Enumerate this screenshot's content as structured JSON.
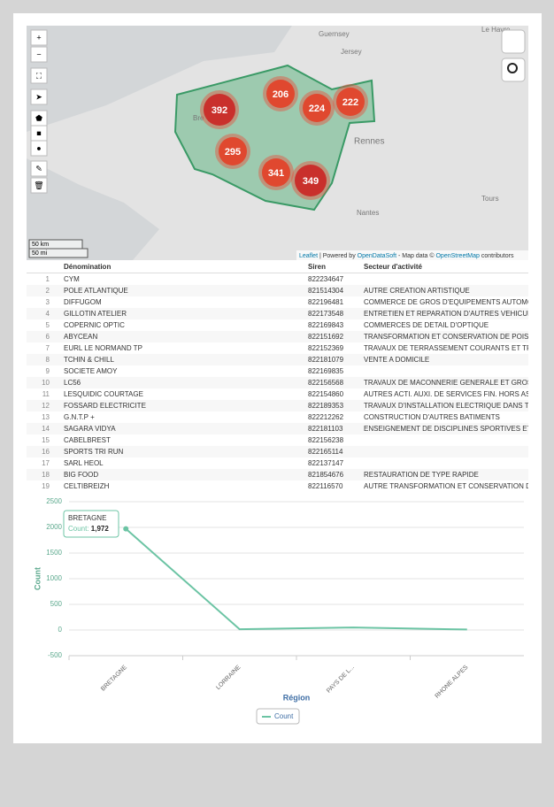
{
  "map": {
    "places": [
      "Guernsey",
      "Jersey",
      "Le Havre",
      "Rennes",
      "Nantes",
      "Tours",
      "Bre"
    ],
    "clusters": [
      "392",
      "206",
      "224",
      "222",
      "295",
      "341",
      "349"
    ],
    "scale": [
      "50 km",
      "50 mi"
    ],
    "attribution": [
      "Leaflet",
      "| Powered by",
      "OpenDataSoft",
      "- Map data ©",
      "OpenStreetMap",
      "contributors"
    ]
  },
  "table": {
    "headers": [
      "Dénomination",
      "Siren",
      "Secteur d'activité"
    ],
    "rows": [
      {
        "n": "1",
        "name": "CYM",
        "siren": "822234647"
      },
      {
        "n": "2",
        "name": "POLE ATLANTIQUE",
        "siren": "821514304",
        "sector": "AUTRE CREATION ARTISTIQUE"
      },
      {
        "n": "3",
        "name": "DIFFUGOM",
        "siren": "822196481",
        "sector": "COMMERCE DE GROS D'EQUIPEMENTS AUTOMOBI"
      },
      {
        "n": "4",
        "name": "GILLOTIN ATELIER",
        "siren": "822173548",
        "sector": "ENTRETIEN ET REPARATION D'AUTRES VEHICULES A"
      },
      {
        "n": "5",
        "name": "COPERNIC OPTIC",
        "siren": "822169843",
        "sector": "COMMERCES DE DETAIL D'OPTIQUE"
      },
      {
        "n": "6",
        "name": "ABYCEAN",
        "siren": "822151692",
        "sector": "TRANSFORMATION ET CONSERVATION DE POISSON"
      },
      {
        "n": "7",
        "name": "EURL LE NORMAND TP",
        "siren": "822152369",
        "sector": "TRAVAUX DE TERRASSEMENT COURANTS ET TRAVAU"
      },
      {
        "n": "8",
        "name": "TCHIN & CHILL",
        "siren": "822181079",
        "sector": "VENTE A DOMICILE"
      },
      {
        "n": "9",
        "name": "SOCIETE AMOY",
        "siren": "822169835"
      },
      {
        "n": "10",
        "name": "LC56",
        "siren": "822156568",
        "sector": "TRAVAUX DE MACONNERIE GENERALE ET GROS OEU"
      },
      {
        "n": "11",
        "name": "LESQUIDIC COURTAGE",
        "siren": "822154860",
        "sector": "AUTRES ACTI. AUXI. DE SERVICES FIN. HORS ASSU. E"
      },
      {
        "n": "12",
        "name": "FOSSARD ELECTRICITE",
        "siren": "822189353",
        "sector": "TRAVAUX D'INSTALLATION ELECTRIQUE DANS TOUS"
      },
      {
        "n": "13",
        "name": "G.N.T.P +",
        "siren": "822212262",
        "sector": "CONSTRUCTION D'AUTRES BATIMENTS"
      },
      {
        "n": "14",
        "name": "SAGARA VIDYA",
        "siren": "822181103",
        "sector": "ENSEIGNEMENT DE DISCIPLINES SPORTIVES ET D'AC"
      },
      {
        "n": "15",
        "name": "CABELBREST",
        "siren": "822156238"
      },
      {
        "n": "16",
        "name": "SPORTS TRI RUN",
        "siren": "822165114"
      },
      {
        "n": "17",
        "name": "SARL HEOL",
        "siren": "822137147"
      },
      {
        "n": "18",
        "name": "BIG FOOD",
        "siren": "821854676",
        "sector": "RESTAURATION DE TYPE RAPIDE"
      },
      {
        "n": "19",
        "name": "CELTIBREIZH",
        "siren": "822116570",
        "sector": "AUTRE TRANSFORMATION ET CONSERVATION DE LE"
      }
    ]
  },
  "chart_data": {
    "type": "line",
    "categories": [
      "BRETAGNE",
      "LORRAINE",
      "PAYS DE L...",
      "RHONE ALPES"
    ],
    "series": [
      {
        "name": "Count",
        "color": "#6cc4a4",
        "values": [
          1972,
          15,
          50,
          10
        ],
        "value_labels": [
          "1,972",
          null,
          null,
          null
        ]
      }
    ],
    "tooltip_label": "Count:",
    "y_label": "Count",
    "x_label": "Région",
    "ylim": [
      -500,
      2500
    ],
    "yticks": [
      -500,
      0,
      500,
      1000,
      1500,
      2000,
      2500
    ],
    "grid": true
  }
}
